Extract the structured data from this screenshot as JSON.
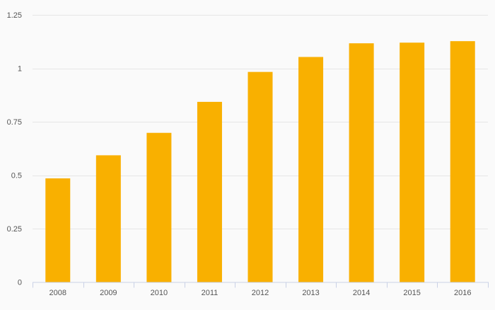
{
  "chart_data": {
    "type": "bar",
    "categories": [
      "2008",
      "2009",
      "2010",
      "2011",
      "2012",
      "2013",
      "2014",
      "2015",
      "2016"
    ],
    "values": [
      0.485,
      0.593,
      0.698,
      0.843,
      0.983,
      1.053,
      1.117,
      1.12,
      1.127
    ],
    "ylim": [
      0,
      1.25
    ],
    "yticks": [
      0,
      0.25,
      0.5,
      0.75,
      1,
      1.25
    ],
    "ytick_labels": [
      "0",
      "0.25",
      "0.5",
      "0.75",
      "1",
      "1.25"
    ],
    "grid": true,
    "legend": "none",
    "colors": {
      "bar": "#f9b000",
      "grid": "#e6e6e6",
      "axis": "#c9d1e6",
      "tick_text": "#555555",
      "background": "#fafafa"
    }
  }
}
